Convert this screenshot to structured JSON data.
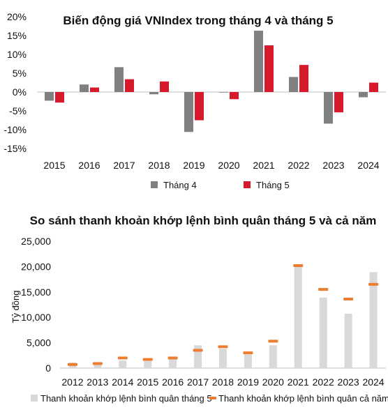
{
  "chart_data": [
    {
      "type": "bar",
      "title": "Biến động giá VNIndex trong tháng 4 và tháng 5",
      "xlabel": "",
      "ylabel": "",
      "categories": [
        "2015",
        "2016",
        "2017",
        "2018",
        "2019",
        "2020",
        "2021",
        "2022",
        "2023",
        "2024"
      ],
      "series": [
        {
          "name": "Tháng 4",
          "color": "#808080",
          "values": [
            -2.3,
            2.0,
            6.6,
            -0.6,
            -10.6,
            -0.1,
            16.3,
            4.0,
            -8.4,
            -1.4
          ]
        },
        {
          "name": "Tháng 5",
          "color": "#d7192c",
          "values": [
            -2.8,
            1.2,
            3.4,
            2.8,
            -7.5,
            -1.9,
            12.4,
            7.2,
            -5.4,
            2.5
          ]
        }
      ],
      "ylim": [
        -15,
        20
      ],
      "yticks": [
        "-15%",
        "-10%",
        "-5%",
        "0%",
        "5%",
        "10%",
        "15%",
        "20%"
      ],
      "ytick_values": [
        -15,
        -10,
        -5,
        0,
        5,
        10,
        15,
        20
      ],
      "grid": false,
      "legend_position": "bottom"
    },
    {
      "type": "bar",
      "title": "So sánh thanh khoản khớp lệnh bình quân tháng 5 và cả năm",
      "xlabel": "",
      "ylabel": "Tỷ đồng",
      "categories": [
        "2012",
        "2013",
        "2014",
        "2015",
        "2016",
        "2017",
        "2018",
        "2019",
        "2020",
        "2021",
        "2022",
        "2023",
        "2024"
      ],
      "series": [
        {
          "name": "Thanh khoản khớp lệnh bình quân tháng 5",
          "kind": "bar",
          "color": "#d9d9d9",
          "values": [
            1100,
            800,
            1500,
            1400,
            1800,
            4500,
            3800,
            2700,
            4500,
            20300,
            13900,
            10700,
            18900
          ]
        },
        {
          "name": "Thanh khoản khớp lệnh bình quân cả năm",
          "kind": "marker",
          "color": "#ed7d31",
          "values": [
            700,
            900,
            2000,
            1700,
            2000,
            3500,
            4200,
            3000,
            5300,
            20200,
            15500,
            13600,
            16500
          ]
        }
      ],
      "ylim": [
        0,
        25000
      ],
      "yticks": [
        "0",
        "5,000",
        "10,000",
        "15,000",
        "20,000",
        "25,000"
      ],
      "ytick_values": [
        0,
        5000,
        10000,
        15000,
        20000,
        25000
      ],
      "grid": false,
      "legend_position": "bottom"
    }
  ]
}
